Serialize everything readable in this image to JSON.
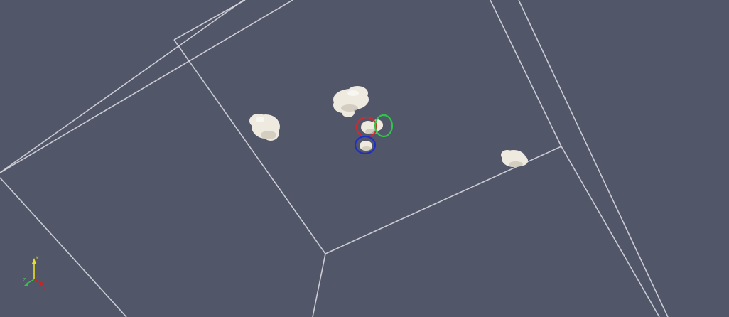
{
  "viewer": {
    "background": "#525669",
    "edge_color": "#d8d8e0",
    "object_color": "#eeeadf"
  },
  "markers": [
    {
      "name": "red-marker",
      "color": "#d9262b"
    },
    {
      "name": "green-marker",
      "color": "#2ec64a"
    },
    {
      "name": "blue-marker",
      "color": "#1e2fc8"
    }
  ],
  "orientation_axes": {
    "x": {
      "label": "X",
      "color": "#d62020"
    },
    "y": {
      "label": "Y",
      "color": "#e8e02a"
    },
    "z": {
      "label": "Z",
      "color": "#36c24c"
    }
  }
}
